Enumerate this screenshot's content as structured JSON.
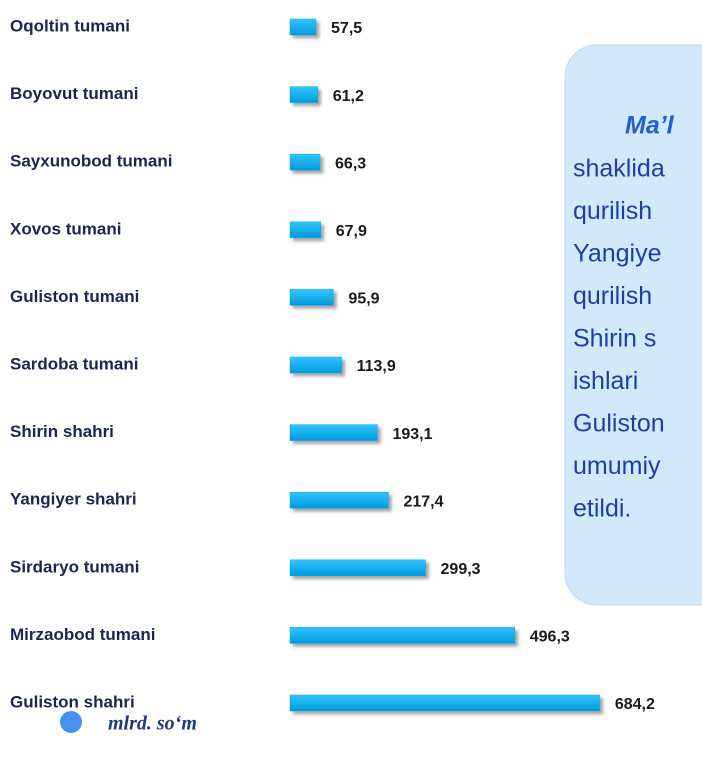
{
  "chart_data": {
    "type": "barh",
    "categories": [
      "Oqoltin tumani",
      "Boyovut tumani",
      "Sayxunobod tumani",
      "Xovos tumani",
      "Guliston tumani",
      "Sardoba tumani",
      "Shirin shahri",
      "Yangiyer shahri",
      "Sirdaryo tumani",
      "Mirzaobod tumani",
      "Guliston shahri"
    ],
    "series": [
      {
        "name": "mlrd. so‘m",
        "color": "#00b0f0",
        "values": [
          57.5,
          61.2,
          66.3,
          67.9,
          95.9,
          113.9,
          193.1,
          217.4,
          299.3,
          496.3,
          684.2
        ],
        "value_labels": [
          "57,5",
          "61,2",
          "66,3",
          "67,9",
          "95,9",
          "113,9",
          "193,1",
          "217,4",
          "299,3",
          "496,3",
          "684,2"
        ]
      }
    ],
    "xlim": [
      0,
      700
    ],
    "annotation": [
      "Ma’l",
      "shaklida",
      "qurilish",
      "Yangiye",
      "qurilish",
      "Shirin  s",
      "ishlari",
      "Guliston",
      "umumiy",
      "etildi."
    ]
  }
}
